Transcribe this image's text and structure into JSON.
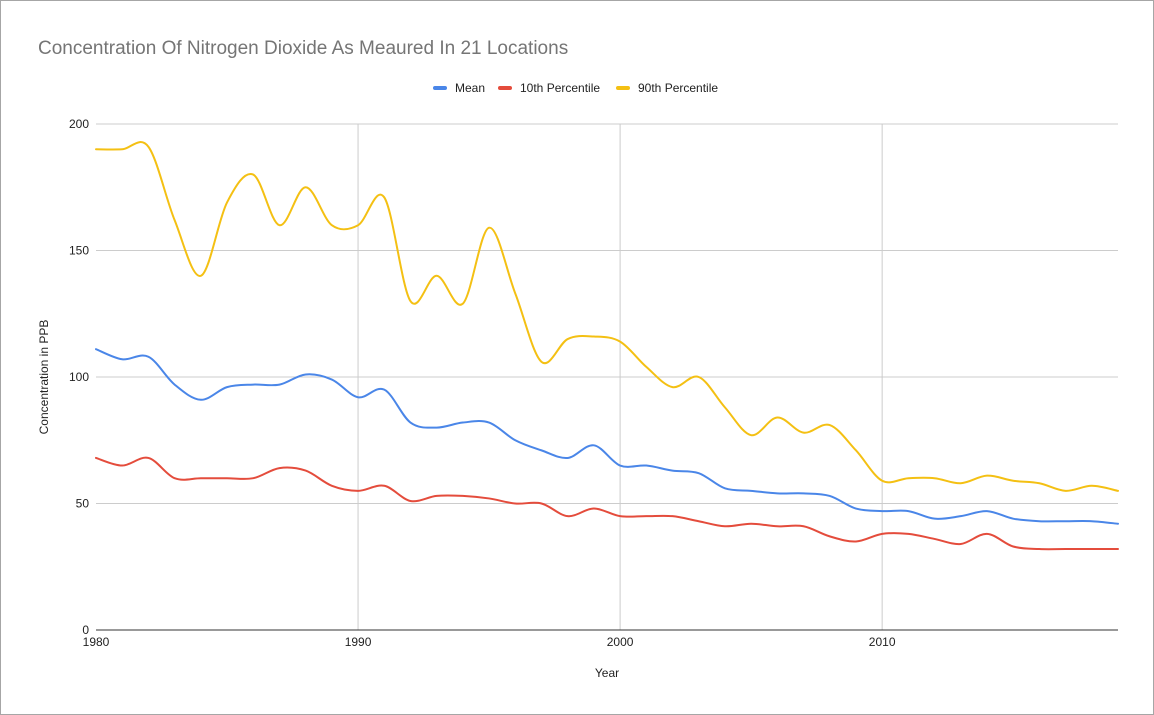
{
  "chart_data": {
    "type": "line",
    "title": "Concentration Of Nitrogen Dioxide As Meaured In 21 Locations",
    "xlabel": "Year",
    "ylabel": "Concentration in PPB",
    "xlim": [
      1980,
      2019
    ],
    "ylim": [
      0,
      200
    ],
    "x_ticks": [
      1980,
      1990,
      2000,
      2010
    ],
    "y_ticks": [
      0,
      50,
      100,
      150,
      200
    ],
    "grid": true,
    "legend_position": "top",
    "x": [
      1980,
      1981,
      1982,
      1983,
      1984,
      1985,
      1986,
      1987,
      1988,
      1989,
      1990,
      1991,
      1992,
      1993,
      1994,
      1995,
      1996,
      1997,
      1998,
      1999,
      2000,
      2001,
      2002,
      2003,
      2004,
      2005,
      2006,
      2007,
      2008,
      2009,
      2010,
      2011,
      2012,
      2013,
      2014,
      2015,
      2016,
      2017,
      2018,
      2019
    ],
    "series": [
      {
        "name": "Mean",
        "color": "#4a86e8",
        "values": [
          111,
          107,
          108,
          97,
          91,
          96,
          97,
          97,
          101,
          99,
          92,
          95,
          82,
          80,
          82,
          82,
          75,
          71,
          68,
          73,
          65,
          65,
          63,
          62,
          56,
          55,
          54,
          54,
          53,
          48,
          47,
          47,
          44,
          45,
          47,
          44,
          43,
          43,
          43,
          42
        ]
      },
      {
        "name": "10th Percentile",
        "color": "#e44c3c",
        "values": [
          68,
          65,
          68,
          60,
          60,
          60,
          60,
          64,
          63,
          57,
          55,
          57,
          51,
          53,
          53,
          52,
          50,
          50,
          45,
          48,
          45,
          45,
          45,
          43,
          41,
          42,
          41,
          41,
          37,
          35,
          38,
          38,
          36,
          34,
          38,
          33,
          32,
          32,
          32,
          32
        ]
      },
      {
        "name": "90th Percentile",
        "color": "#f4c013",
        "values": [
          190,
          190,
          191,
          162,
          140,
          169,
          180,
          160,
          175,
          160,
          160,
          171,
          130,
          140,
          129,
          159,
          133,
          106,
          115,
          116,
          114,
          104,
          96,
          100,
          88,
          77,
          84,
          78,
          81,
          71,
          59,
          60,
          60,
          58,
          61,
          59,
          58,
          55,
          57,
          55
        ]
      }
    ]
  }
}
